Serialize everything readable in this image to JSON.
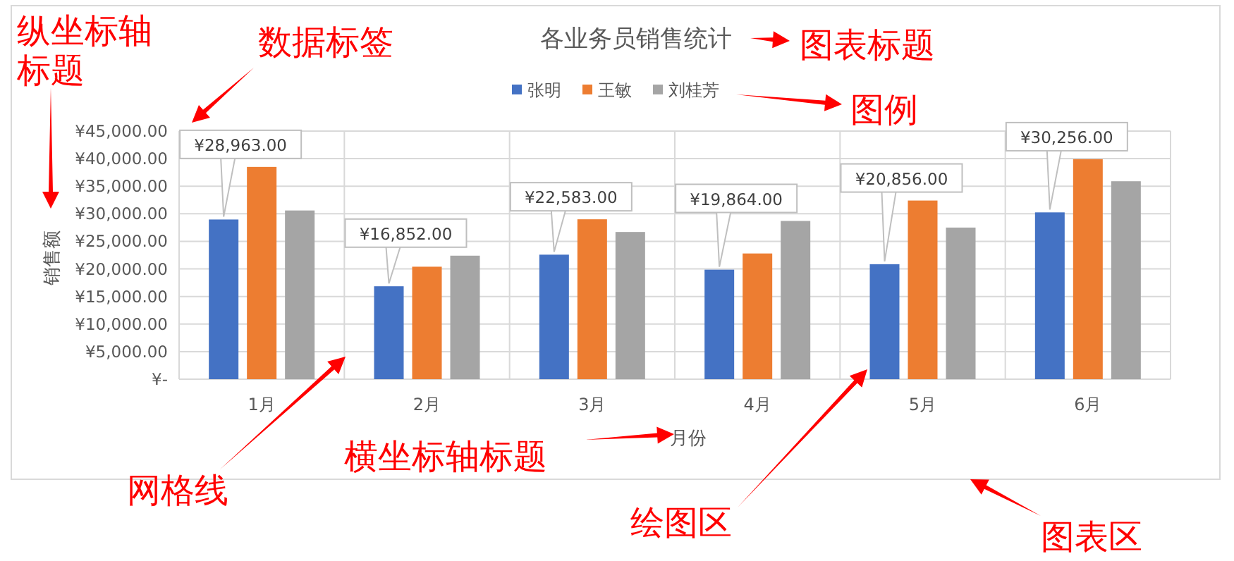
{
  "chart_data": {
    "type": "bar",
    "title": "各业务员销售统计",
    "xlabel": "月份",
    "ylabel": "销售额",
    "categories": [
      "1月",
      "2月",
      "3月",
      "4月",
      "5月",
      "6月"
    ],
    "series": [
      {
        "name": "张明",
        "color": "#4472c4",
        "values": [
          28963,
          16852,
          22583,
          19864,
          20856,
          30256
        ],
        "value_labels": [
          "¥28,963.00",
          "¥16,852.00",
          "¥22,583.00",
          "¥19,864.00",
          "¥20,856.00",
          "¥30,256.00"
        ]
      },
      {
        "name": "王敏",
        "color": "#ed7d31",
        "values": [
          38500,
          20400,
          29000,
          22800,
          32400,
          39900
        ]
      },
      {
        "name": "刘桂芳",
        "color": "#a5a5a5",
        "values": [
          30600,
          22400,
          26700,
          28700,
          27500,
          35900
        ]
      }
    ],
    "ylim": [
      0,
      45000
    ],
    "yticks": [
      {
        "value": 0,
        "label": "¥-"
      },
      {
        "value": 5000,
        "label": "¥5,000.00"
      },
      {
        "value": 10000,
        "label": "¥10,000.00"
      },
      {
        "value": 15000,
        "label": "¥15,000.00"
      },
      {
        "value": 20000,
        "label": "¥20,000.00"
      },
      {
        "value": 25000,
        "label": "¥25,000.00"
      },
      {
        "value": 30000,
        "label": "¥30,000.00"
      },
      {
        "value": 35000,
        "label": "¥35,000.00"
      },
      {
        "value": 40000,
        "label": "¥40,000.00"
      },
      {
        "value": 45000,
        "label": "¥45,000.00"
      }
    ],
    "grid": true,
    "legend": "top",
    "annotations": [
      "纵坐标轴标题",
      "数据标签",
      "图表标题",
      "图例",
      "网格线",
      "横坐标轴标题",
      "绘图区",
      "图表区"
    ]
  }
}
